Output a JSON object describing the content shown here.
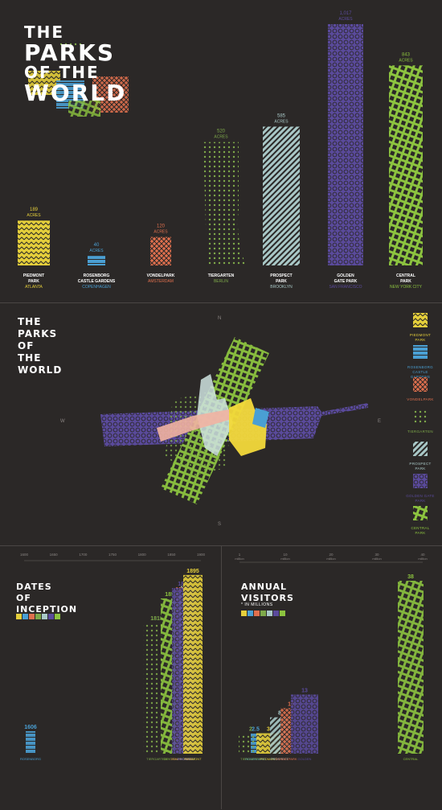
{
  "title": {
    "line1": "THE",
    "line2": "PARKS",
    "line3": "OF THE",
    "line4": "WORLD"
  },
  "colors": {
    "piedmont": "#e5cf3b",
    "rosenborg": "#4a9fd3",
    "vondelpark": "#e0704e",
    "tiergarten": "#7ea94a",
    "prospect": "#a9c8c7",
    "golden_gate": "#5a4a9c",
    "central": "#8cc33f",
    "background": "#2b2827"
  },
  "chart_data": [
    {
      "type": "bar",
      "title": "THE PARKS OF THE WORLD",
      "unit": "ACRES",
      "series": [
        {
          "name": "PIEDMONT PARK",
          "city": "ATLANTA",
          "value": 189,
          "label": "189"
        },
        {
          "name": "ROSENBORG CASTLE GARDENS",
          "city": "COPENHAGEN",
          "value": 40,
          "label": "40"
        },
        {
          "name": "VONDELPARK",
          "city": "AMSTERDAM",
          "value": 120,
          "label": "120"
        },
        {
          "name": "TIERGARTEN",
          "city": "BERLIN",
          "value": 520,
          "label": "520"
        },
        {
          "name": "PROSPECT PARK",
          "city": "BROOKLYN",
          "value": 585,
          "label": "585"
        },
        {
          "name": "GOLDEN GATE PARK",
          "city": "SAN FRANCISCO",
          "value": 1017,
          "label": "1,017"
        },
        {
          "name": "CENTRAL PARK",
          "city": "NEW YORK CITY",
          "value": 843,
          "label": "843"
        }
      ]
    },
    {
      "type": "timeline",
      "title": "DATES OF INCEPTION",
      "axis_ticks": [
        "1600",
        "1650",
        "1700",
        "1750",
        "1800",
        "1850",
        "1900"
      ],
      "series": [
        {
          "name": "ROSENBORG CASTLE GARDENS",
          "value": 1606
        },
        {
          "name": "TIERGARTEN",
          "value": 1818
        },
        {
          "name": "CENTRAL PARK",
          "value": 1857
        },
        {
          "name": "VONDELPARK",
          "value": 1865
        },
        {
          "name": "PROSPECT PARK",
          "value": 1867
        },
        {
          "name": "GOLDEN GATE PARK",
          "value": 1870
        },
        {
          "name": "PIEDMONT PARK",
          "value": 1895
        }
      ]
    },
    {
      "type": "bar",
      "title": "ANNUAL VISITORS",
      "subtitle": "* IN MILLIONS",
      "axis_ticks": [
        "1 million",
        "10 million",
        "20 million",
        "30 million",
        "40 million"
      ],
      "series": [
        {
          "name": "ROSENBORG CASTLE GARDENS",
          "value": 2.5
        },
        {
          "name": "TIERGARTEN",
          "value": 2
        },
        {
          "name": "PIEDMONT PARK",
          "value": 3
        },
        {
          "name": "PROSPECT PARK",
          "value": 8
        },
        {
          "name": "VONDELPARK",
          "value": 10
        },
        {
          "name": "GOLDEN GATE PARK",
          "value": 13
        },
        {
          "name": "CENTRAL PARK",
          "value": 38
        }
      ]
    }
  ],
  "map": {
    "title1": "THE",
    "title2": "PARKS",
    "title3": "OF",
    "title4": "THE",
    "title5": "WORLD",
    "compass": {
      "n": "N",
      "s": "S",
      "e": "E",
      "w": "W"
    }
  },
  "legend": [
    {
      "name": "PIEDMONT PARK",
      "key": "piedmont"
    },
    {
      "name": "ROSENBORG CASTLE GARDENS",
      "key": "rosenborg"
    },
    {
      "name": "VONDELPARK",
      "key": "vondelpark"
    },
    {
      "name": "TIERGARTEN",
      "key": "tiergarten"
    },
    {
      "name": "PROSPECT PARK",
      "key": "prospect"
    },
    {
      "name": "GOLDEN GATE PARK",
      "key": "golden_gate"
    },
    {
      "name": "CENTRAL PARK",
      "key": "central"
    }
  ],
  "inception": {
    "title1": "DATES",
    "title2": "OF",
    "title3": "INCEPTION"
  },
  "visitors": {
    "title1": "ANNUAL",
    "title2": "VISITORS",
    "subtitle": "* IN MILLIONS"
  }
}
